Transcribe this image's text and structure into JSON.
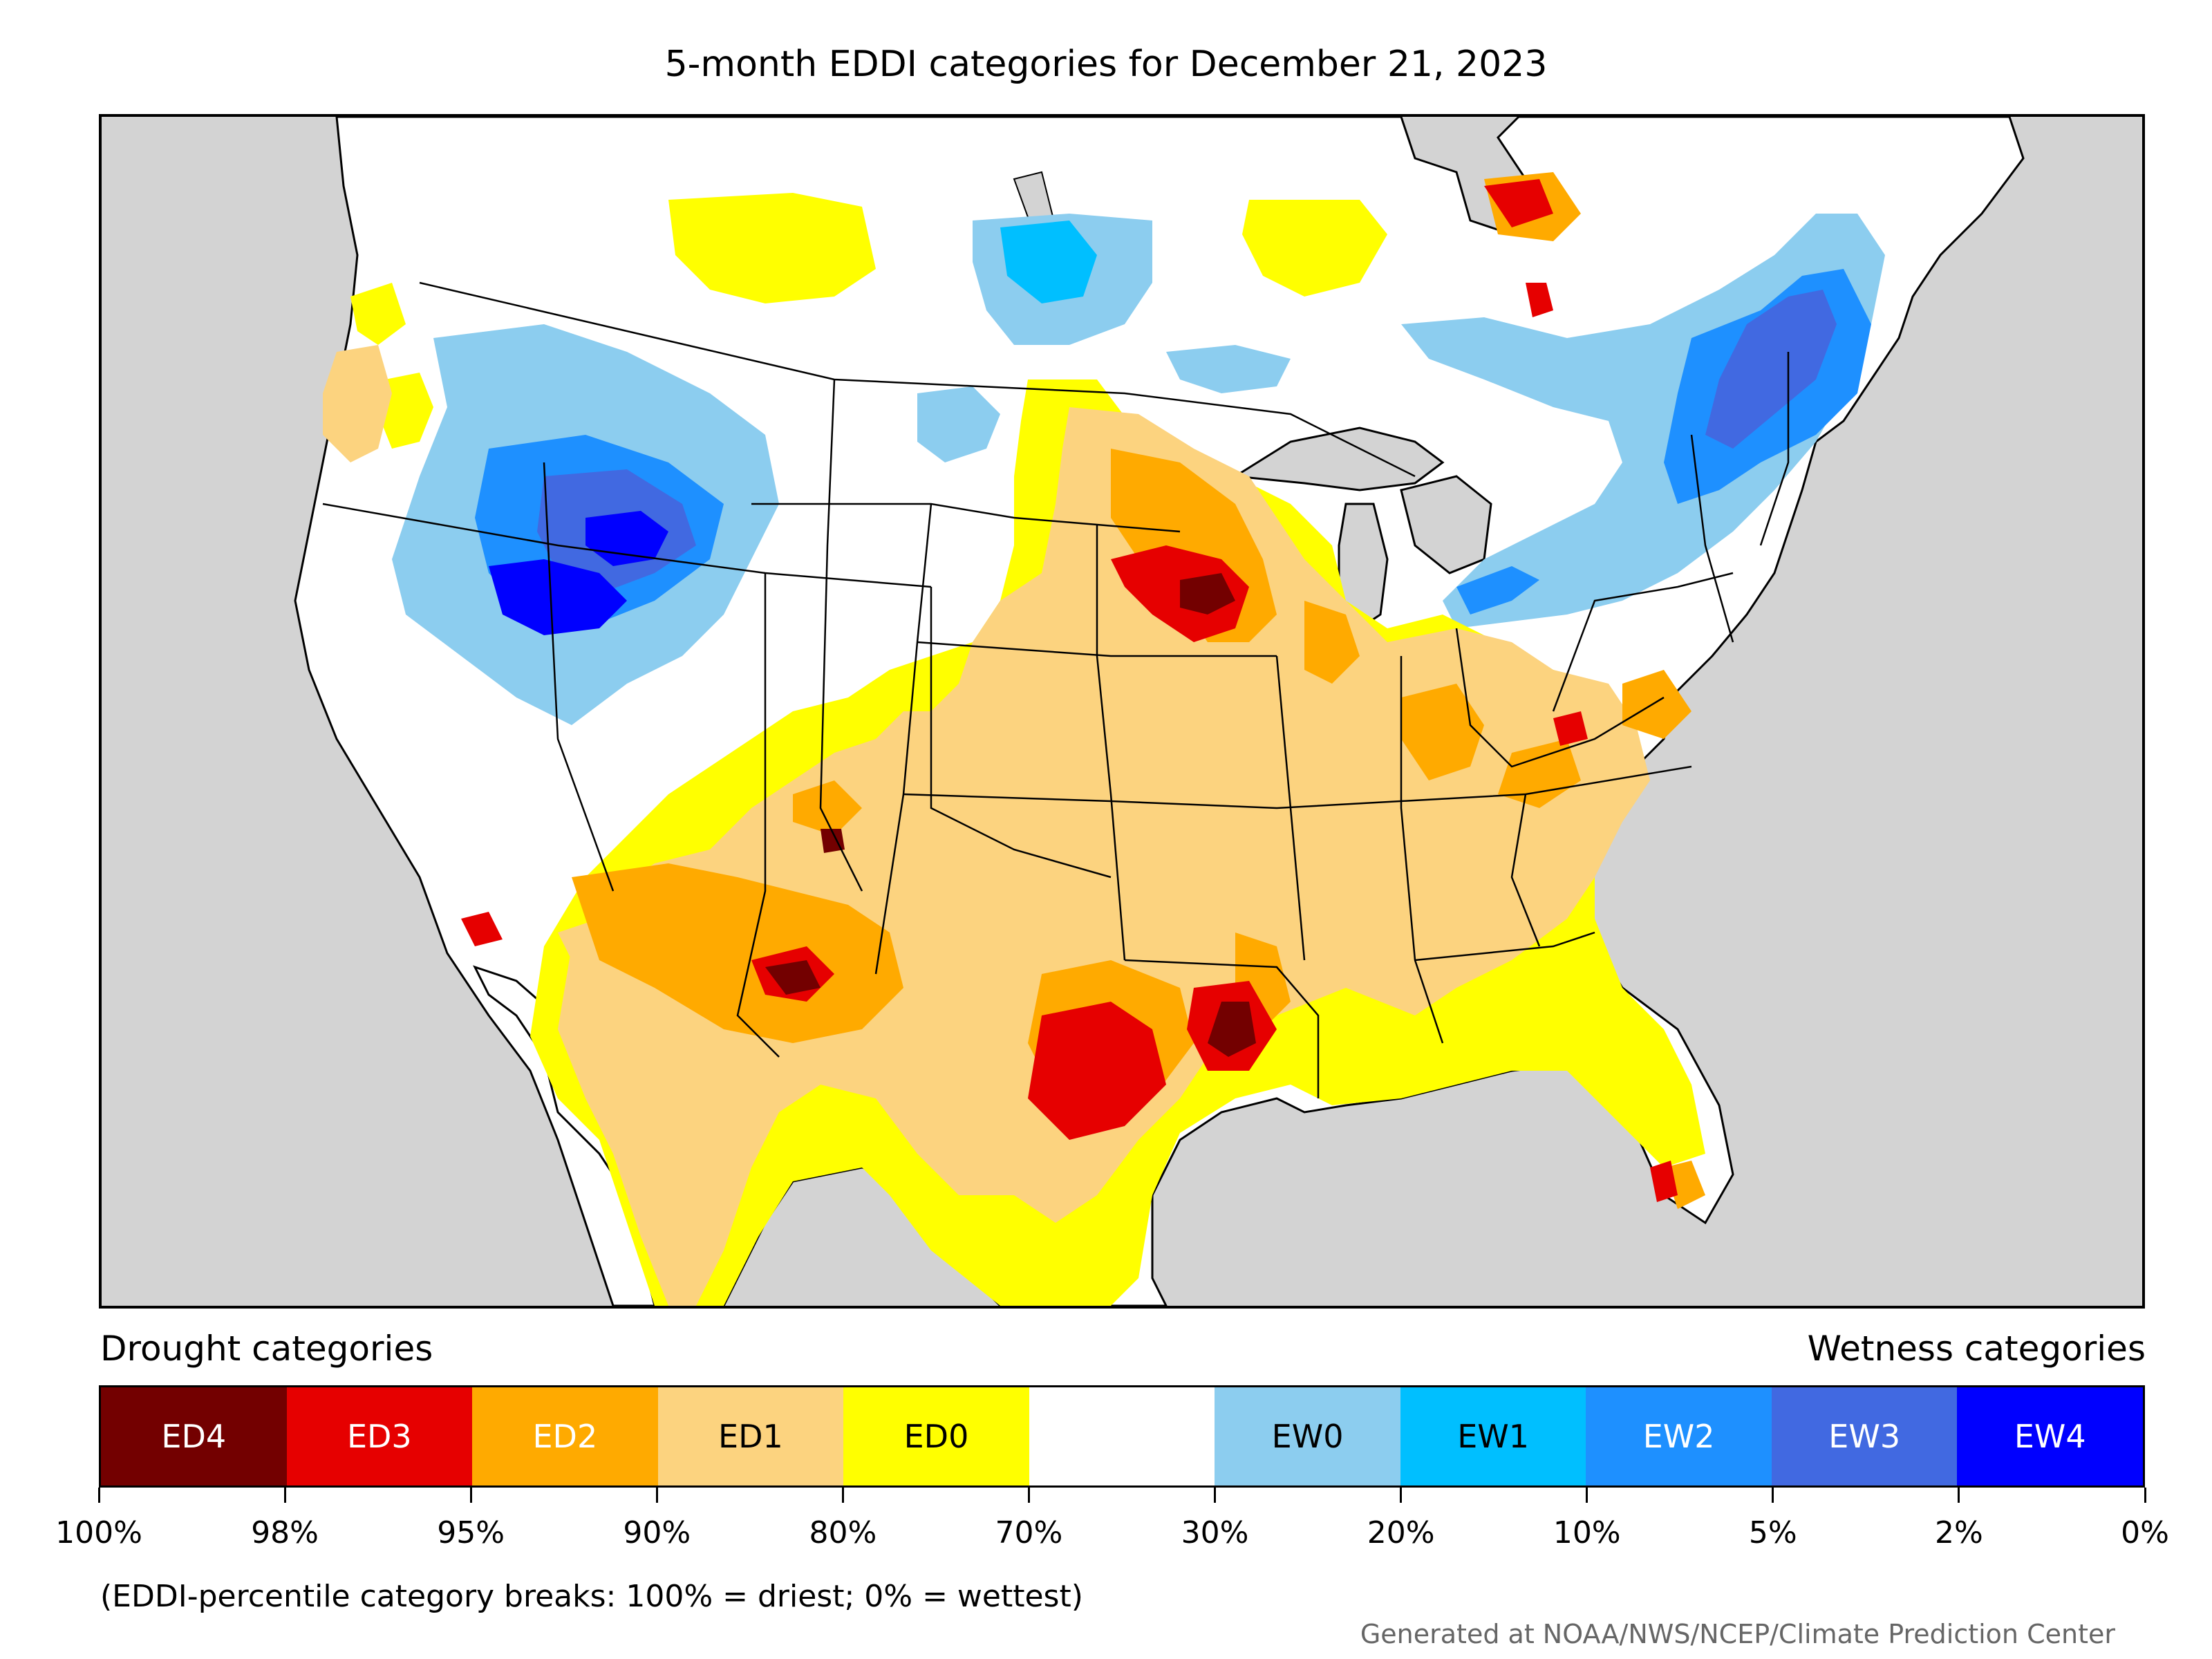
{
  "title": "5-month EDDI categories for December 21, 2023",
  "legend": {
    "left_label": "Drought categories",
    "right_label": "Wetness categories",
    "categories": [
      {
        "label": "ED4",
        "color": "#730000",
        "text_color": "#ffffff"
      },
      {
        "label": "ED3",
        "color": "#e60000",
        "text_color": "#ffffff"
      },
      {
        "label": "ED2",
        "color": "#ffaa00",
        "text_color": "#ffffff"
      },
      {
        "label": "ED1",
        "color": "#fcd37f",
        "text_color": "#000000"
      },
      {
        "label": "ED0",
        "color": "#ffff00",
        "text_color": "#000000"
      },
      {
        "label": "",
        "color": "#ffffff",
        "text_color": "#000000"
      },
      {
        "label": "EW0",
        "color": "#8ccdef",
        "text_color": "#000000"
      },
      {
        "label": "EW1",
        "color": "#00bfff",
        "text_color": "#000000"
      },
      {
        "label": "EW2",
        "color": "#1e90ff",
        "text_color": "#ffffff"
      },
      {
        "label": "EW3",
        "color": "#4169e1",
        "text_color": "#ffffff"
      },
      {
        "label": "EW4",
        "color": "#0000ff",
        "text_color": "#ffffff"
      }
    ],
    "tick_labels": [
      "100%",
      "98%",
      "95%",
      "90%",
      "80%",
      "70%",
      "30%",
      "20%",
      "10%",
      "5%",
      "2%",
      "0%"
    ]
  },
  "note": "(EDDI-percentile category breaks: 100% = driest; 0% = wettest)",
  "credit": "Generated at NOAA/NWS/NCEP/Climate Prediction Center",
  "map": {
    "ocean_color": "#d3d3d3",
    "land_color": "#ffffff"
  }
}
